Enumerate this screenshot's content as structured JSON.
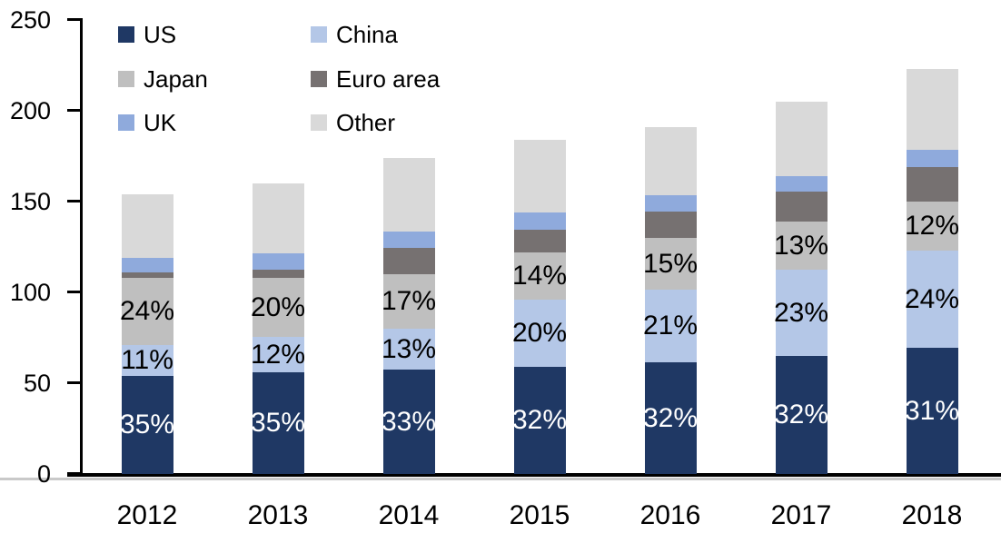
{
  "chart_data": {
    "type": "bar",
    "stacked": true,
    "title": "",
    "xlabel": "",
    "ylabel": "",
    "categories": [
      "2012",
      "2013",
      "2014",
      "2015",
      "2016",
      "2017",
      "2018"
    ],
    "series": [
      {
        "name": "US",
        "color": "#1f3864",
        "values": [
          54,
          56,
          57.5,
          59,
          61.5,
          65,
          69.5
        ],
        "labels": [
          "35%",
          "35%",
          "33%",
          "32%",
          "32%",
          "32%",
          "31%"
        ],
        "label_color": "#ffffff"
      },
      {
        "name": "China",
        "color": "#b4c7e7",
        "values": [
          17,
          19.5,
          22.5,
          37,
          40,
          47.5,
          53.5
        ],
        "labels": [
          "11%",
          "12%",
          "13%",
          "20%",
          "21%",
          "23%",
          "24%"
        ],
        "label_color": "#000000"
      },
      {
        "name": "Japan",
        "color": "#bfbfbf",
        "values": [
          37,
          32.5,
          30,
          26,
          28.5,
          26.5,
          27
        ],
        "labels": [
          "24%",
          "20%",
          "17%",
          "14%",
          "15%",
          "13%",
          "12%"
        ],
        "label_color": "#000000"
      },
      {
        "name": "Euro area",
        "color": "#767171",
        "values": [
          3,
          4.5,
          14.5,
          12.5,
          14.5,
          16.5,
          19
        ],
        "labels": null,
        "label_color": null
      },
      {
        "name": "UK",
        "color": "#8faadc",
        "values": [
          8,
          9,
          9,
          9.5,
          9,
          8.5,
          9.5
        ],
        "labels": null,
        "label_color": null
      },
      {
        "name": "Other",
        "color": "#d9d9d9",
        "values": [
          35,
          38.5,
          40.5,
          40,
          37.5,
          41,
          44.5
        ],
        "labels": null,
        "label_color": null
      }
    ],
    "totals": [
      154,
      160,
      174,
      184,
      191,
      205,
      223
    ],
    "y_axis": {
      "min": 0,
      "max": 250,
      "ticks": [
        0,
        50,
        100,
        150,
        200,
        250
      ]
    },
    "legend_position": "top-left",
    "legend_columns": [
      [
        "US",
        "Japan",
        "UK"
      ],
      [
        "China",
        "Euro area",
        "Other"
      ]
    ],
    "grid": false,
    "axis_color": "#000000",
    "baseline_shadow_color": "#c9c9c9",
    "background_color": "#ffffff"
  }
}
